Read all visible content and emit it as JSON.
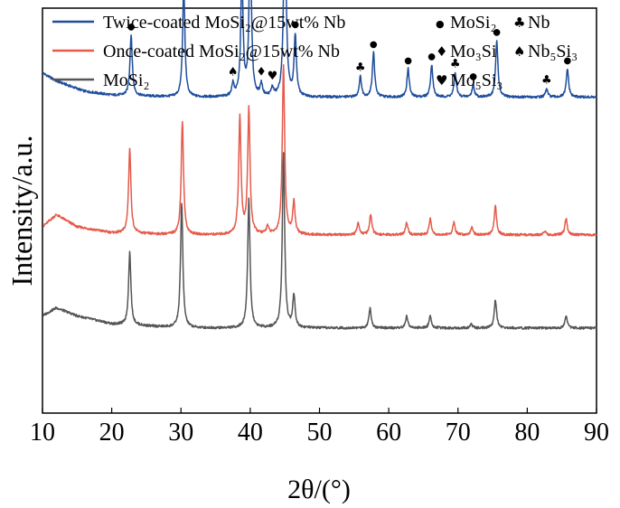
{
  "chart_data": {
    "type": "line",
    "xlabel": "2θ/(°)",
    "ylabel": "Intensity/a.u.",
    "xlim": [
      10,
      90
    ],
    "x_ticks": [
      "10",
      "20",
      "30",
      "40",
      "50",
      "60",
      "70",
      "80",
      "90"
    ],
    "y_ticks_labeled": false,
    "legend_position": "top-left",
    "series": [
      {
        "name": "Twice-coated MoSi₂@15wt% Nb",
        "color": "#1f4e9c",
        "baseline_level": 0.78,
        "background": [
          [
            10,
            0.06
          ],
          [
            12,
            0.04
          ],
          [
            16,
            0.015
          ],
          [
            20,
            0.005
          ],
          [
            30,
            0.0
          ],
          [
            90,
            0.0
          ]
        ],
        "peaks": [
          [
            22.8,
            0.15
          ],
          [
            30.4,
            0.27
          ],
          [
            37.5,
            0.03
          ],
          [
            38.8,
            0.3
          ],
          [
            40.0,
            0.4
          ],
          [
            41.6,
            0.03
          ],
          [
            43.2,
            0.02
          ],
          [
            45.0,
            0.53
          ],
          [
            46.5,
            0.15
          ],
          [
            55.9,
            0.05
          ],
          [
            57.8,
            0.11
          ],
          [
            62.8,
            0.07
          ],
          [
            66.2,
            0.08
          ],
          [
            69.6,
            0.06
          ],
          [
            72.2,
            0.03
          ],
          [
            75.6,
            0.14
          ],
          [
            82.8,
            0.02
          ],
          [
            85.8,
            0.07
          ]
        ]
      },
      {
        "name": "Once-coated MoSi₂@15wt% Nb",
        "color": "#e55a4a",
        "baseline_level": 0.44,
        "background": [
          [
            10,
            0.02
          ],
          [
            12,
            0.05
          ],
          [
            15,
            0.02
          ],
          [
            20,
            0.005
          ],
          [
            30,
            0.0
          ],
          [
            90,
            0.0
          ]
        ],
        "peaks": [
          [
            22.6,
            0.21
          ],
          [
            30.2,
            0.28
          ],
          [
            38.5,
            0.29
          ],
          [
            39.8,
            0.31
          ],
          [
            42.5,
            0.02
          ],
          [
            44.8,
            0.42
          ],
          [
            46.3,
            0.08
          ],
          [
            55.6,
            0.03
          ],
          [
            57.4,
            0.05
          ],
          [
            62.6,
            0.03
          ],
          [
            66.0,
            0.04
          ],
          [
            69.4,
            0.03
          ],
          [
            72.0,
            0.02
          ],
          [
            75.4,
            0.07
          ],
          [
            82.5,
            0.01
          ],
          [
            85.6,
            0.04
          ]
        ]
      },
      {
        "name": "MoSi₂",
        "color": "#555555",
        "baseline_level": 0.21,
        "background": [
          [
            10,
            0.03
          ],
          [
            12,
            0.05
          ],
          [
            15,
            0.03
          ],
          [
            20,
            0.01
          ],
          [
            30,
            0.0
          ],
          [
            90,
            0.0
          ]
        ],
        "peaks": [
          [
            22.6,
            0.18
          ],
          [
            30.1,
            0.31
          ],
          [
            39.8,
            0.32
          ],
          [
            44.8,
            0.43
          ],
          [
            46.3,
            0.08
          ],
          [
            57.3,
            0.05
          ],
          [
            62.6,
            0.03
          ],
          [
            66.0,
            0.03
          ],
          [
            71.9,
            0.01
          ],
          [
            75.4,
            0.07
          ],
          [
            85.6,
            0.03
          ]
        ]
      }
    ],
    "phase_legend": [
      {
        "symbol": "●",
        "name": "MoSi₂"
      },
      {
        "symbol": "♣",
        "name": "Nb"
      },
      {
        "symbol": "♦",
        "name": "Mo₃Si"
      },
      {
        "symbol": "♠",
        "name": "Nb₅Si₃"
      },
      {
        "symbol": "♥",
        "name": "Mo₅Si₃"
      }
    ],
    "peak_markers": [
      {
        "x": 22.8,
        "symbol": "●"
      },
      {
        "x": 30.4,
        "symbol": "●"
      },
      {
        "x": 37.5,
        "symbol": "♠"
      },
      {
        "x": 38.8,
        "symbol": "♣"
      },
      {
        "x": 40.0,
        "symbol": "●"
      },
      {
        "x": 41.6,
        "symbol": "♦"
      },
      {
        "x": 43.2,
        "symbol": "♥"
      },
      {
        "x": 45.0,
        "symbol": "●"
      },
      {
        "x": 46.5,
        "symbol": "●"
      },
      {
        "x": 55.9,
        "symbol": "♣"
      },
      {
        "x": 57.8,
        "symbol": "●"
      },
      {
        "x": 62.8,
        "symbol": "●"
      },
      {
        "x": 66.2,
        "symbol": "●"
      },
      {
        "x": 69.6,
        "symbol": "♣"
      },
      {
        "x": 72.2,
        "symbol": "●"
      },
      {
        "x": 75.6,
        "symbol": "●"
      },
      {
        "x": 82.8,
        "symbol": "♣"
      },
      {
        "x": 85.8,
        "symbol": "●"
      }
    ]
  }
}
